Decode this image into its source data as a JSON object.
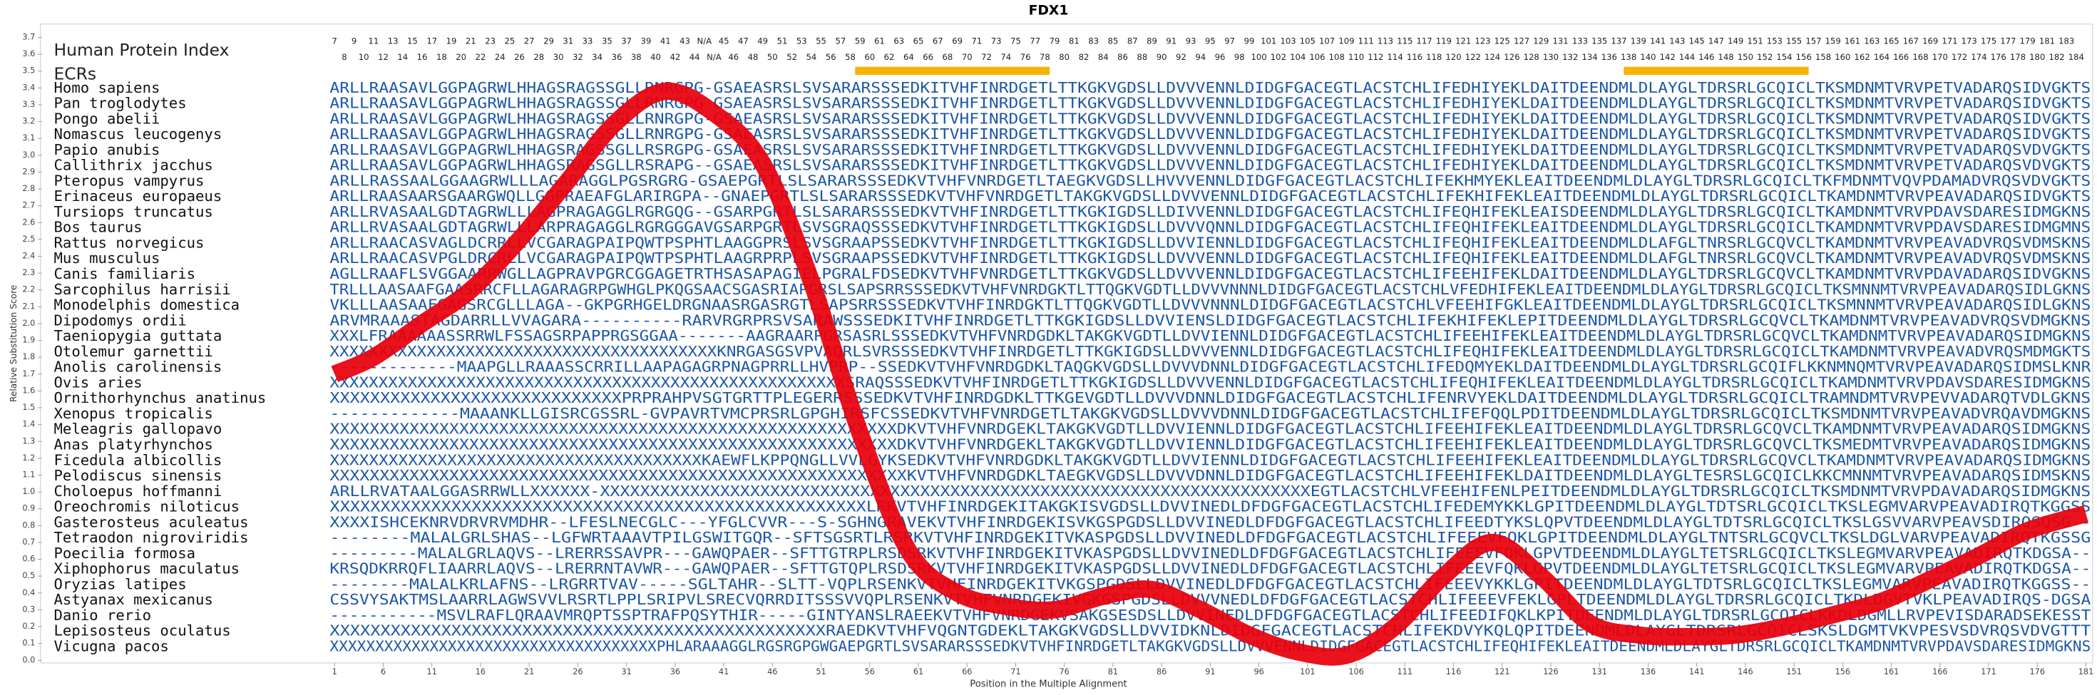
{
  "chart_data": {
    "type": "line",
    "title": "FDX1",
    "xlabel": "Position in the Multiple Alignment",
    "ylabel": "Relative Substitution Score",
    "x": [
      1,
      5,
      10,
      15,
      20,
      25,
      30,
      35,
      40,
      45,
      50,
      55,
      60,
      65,
      70,
      75,
      80,
      85,
      90,
      95,
      100,
      105,
      110,
      115,
      120,
      125,
      130,
      135,
      140,
      145,
      150,
      155,
      160,
      165,
      170,
      175,
      181
    ],
    "series": [
      {
        "color": "#e8000b",
        "values": [
          1.7,
          1.8,
          2.0,
          2.2,
          2.5,
          2.85,
          3.2,
          3.38,
          3.25,
          2.95,
          2.25,
          1.35,
          0.65,
          0.4,
          0.32,
          0.3,
          0.38,
          0.42,
          0.3,
          0.15,
          0.05,
          0.03,
          0.2,
          0.5,
          0.7,
          0.5,
          0.22,
          0.15,
          0.14,
          0.15,
          0.2,
          0.27,
          0.35,
          0.48,
          0.62,
          0.77,
          0.87
        ]
      }
    ],
    "xlim": [
      1,
      181
    ],
    "ylim": [
      0,
      3.7
    ],
    "xticks": [
      1,
      6,
      11,
      16,
      21,
      26,
      31,
      36,
      41,
      46,
      51,
      56,
      61,
      66,
      71,
      76,
      81,
      86,
      91,
      96,
      101,
      106,
      111,
      116,
      121,
      126,
      131,
      136,
      141,
      146,
      151,
      156,
      161,
      166,
      171,
      176,
      181
    ],
    "yticks": [
      {
        "value": 0,
        "label": "0.0"
      },
      0.1,
      0.2,
      0.3,
      0.4,
      0.5,
      0.6,
      0.7,
      0.8,
      0.9,
      {
        "value": 1,
        "label": "1.0"
      },
      1.1,
      1.2,
      1.3,
      1.4,
      1.5,
      1.6,
      1.7,
      1.8,
      1.9,
      {
        "value": 2,
        "label": "2.0"
      },
      2.1,
      2.2,
      2.3,
      2.4,
      2.5,
      2.6,
      2.7,
      2.8,
      2.9,
      {
        "value": 3,
        "label": "3.0"
      },
      3.1,
      3.2,
      3.3,
      3.4,
      3.5,
      3.6,
      3.7
    ]
  },
  "alignment": {
    "index_label": "Human Protein Index",
    "ecr_label": "ECRs",
    "human_index_odd": [
      7,
      9,
      11,
      13,
      15,
      17,
      19,
      21,
      23,
      25,
      27,
      29,
      31,
      33,
      35,
      37,
      39,
      41,
      43,
      "N/A",
      45,
      47,
      49,
      51,
      53,
      55,
      57,
      59,
      61,
      63,
      65,
      67,
      69,
      71,
      73,
      75,
      77,
      79,
      81,
      83,
      85,
      87,
      89,
      91,
      93,
      95,
      97,
      99,
      101,
      103,
      105,
      107,
      109,
      111,
      113,
      115,
      117,
      119,
      121,
      123,
      125,
      127,
      129,
      131,
      133,
      135,
      137,
      139,
      141,
      143,
      145,
      147,
      149,
      151,
      153,
      155,
      157,
      159,
      161,
      163,
      165,
      167,
      169,
      171,
      173,
      175,
      177,
      179,
      181,
      183
    ],
    "human_index_even": [
      8,
      10,
      12,
      14,
      16,
      18,
      20,
      22,
      24,
      26,
      28,
      30,
      32,
      34,
      36,
      38,
      40,
      42,
      44,
      "N/A",
      46,
      48,
      50,
      52,
      54,
      56,
      58,
      60,
      62,
      64,
      66,
      68,
      70,
      72,
      74,
      76,
      78,
      80,
      82,
      84,
      86,
      88,
      90,
      92,
      94,
      96,
      98,
      100,
      102,
      104,
      106,
      108,
      110,
      112,
      114,
      116,
      118,
      120,
      122,
      124,
      126,
      128,
      130,
      132,
      134,
      136,
      138,
      140,
      142,
      144,
      146,
      148,
      150,
      152,
      154,
      156,
      158,
      160,
      162,
      164,
      166,
      168,
      170,
      172,
      174,
      176,
      178,
      180,
      182,
      184
    ],
    "ecrs": {
      "color": "#f5b400",
      "ranges": [
        [
          55,
          74
        ],
        [
          134,
          152
        ]
      ]
    },
    "species": [
      {
        "name": "Homo sapiens",
        "sequence": "ARLLRAASAVLGGPAGRWLHHAGSRAGSSGLLRNRGPG-GSAEASRSLSVSARARSSSEDKITVHFINRDGETLTTKGKVGDSLLDVVVENNLDIDGFGACEGTLACSTCHLIFEDHIYEKLDAITDEENDMLDLAYGLTDRSRLGCQICLTKSMDNMTVRVPETVADARQSIDVGKTS"
      },
      {
        "name": "Pan troglodytes",
        "sequence": "ARLLRAASAVLGGPAGRWLHHAGSRAGSSGLLRNRGPG-GSAEASRSLSVSARARSSSEDKITVHFINRDGETLTTKGKVGDSLLDVVVENNLDIDGFGACEGTLACSTCHLIFEDHIYEKLDAITDEENDMLDLAYGLTDRSRLGCQICLTKSMDNMTVRVPETVADARQSIDVGKTS"
      },
      {
        "name": "Pongo abelii",
        "sequence": "ARLLRAASAVLGGPAGRWLHHAGSRAGSSGLLRNRGPG-GSAEASRSLSVSARARSSSEDKITVHFINRDGETLTTKGKVGDSLLDVVVENNLDIDGFGACEGTLACSTCHLIFEDHIYEKLDAITDEENDMLDLAYGLTDRSRLGCQICLTKSMDNMTVRVPETVADARQSIDVGKTS"
      },
      {
        "name": "Nomascus leucogenys",
        "sequence": "ARLLRAASAVLGGPAGRWLHHAGSRAGSSGLLRNRGPG-GSAEASRSLSVSARARSSSEDKITVHFINRDGETLTTKGKVGDSLLDVVVENNLDIDGFGACEGTLACSTCHLIFEDHIYEKLDAITDEENDMLDLAYGLTDRSRLGCQICLTKSMDNMTVRVPETVADARQSIDVGKTS"
      },
      {
        "name": "Papio anubis",
        "sequence": "ARLLRAASAVLGGPAGRWLHHAGSRAGSSGLLRSRGPG-GSAEASRSLSVSARARSSSEDKITVHFINRDGETLTTKGKVGDSLLDVVVENNLDIDGFGACEGTLACSTCHLIFEDHIYEKLDAITDEENDMLDLAYGLTDRSRLGCQICLTKSMDNMTVRVPETVADARQSVDVGKTS"
      },
      {
        "name": "Callithrix jacchus",
        "sequence": "ARLLRAASAVLGGPAGRWLHHAGSRAGSGLLRSRAPG--GSAEASRSLSVSARARSSSEDKITVHFINRDGETLTTKGKVGDSLLDVVVENNLDIDGFGACEGTLACSTCHLIFEDHIYEKLDAITDEENDMLDLAYGLTDRSRLGCQICLTKSMDNMTVRVPETVADARQSVDVGKTS"
      },
      {
        "name": "Pteropus vampyrus",
        "sequence": "ARLLRASSAALGGAAGRWLLLAGARAGGLPGSRGRG-GSAEPGRTLSLSARARSSSEDKVTVHFVNRDGETLTAEGKVGDSLLHVVVENNLDIDGFGACEGTLACSTCHLIFEKHMYEKLEAITDEENDMLDLAYGLTDRSRLGCQICLTKFMDNMTVQVPDAMADVRQSVDVGKTS"
      },
      {
        "name": "Erinaceus europaeus",
        "sequence": "ARLLRAASAARSGAARGWQLLGGPRAEAFGLARIRGPA--GNAEPGRTLSLSARARSSSEDKVTVHFVNRDGETLTAKGKVGDSLLDVVVENNLDIDGFGACEGTLACSTCHLIFEKHIFEKLEAITDEENDMLDLAYGLTDRSRLGCQICLTKAMDNMTVRVPEAVADARQSIDVGKTS"
      },
      {
        "name": "Tursiops truncatus",
        "sequence": "ARLLRVASAALGDTAGRWLLLAGPRAGAGGLRGRGQG--GSARPGRTLSLSARARSSSEDKVTVHFINRDGETLTTKGKIGDSLLDIVVENNLDIDGFGACEGTLACSTCHLIFEQHIFEKLEAISDEENDMLDLAYGLTDRSRLGCQICLTKAMDNMTVRVPDAVSDARESIDMGKNS"
      },
      {
        "name": "Bos taurus",
        "sequence": "ARLLRVASAALGDTAGRWLLLARPRAGAGGLRGRGGGAVGSARPGRTLSVSGRAQSSSEDKVTVHFINRDGETLTTKGKIGDSLLDVVVQNNLDIDGFGACEGTLACSTCHLIFEQHIFEKLEAITDEENDMLDLAYGLTDRSRLGCQICLTKAMDNMTVRVPDAVSDARESIDMGMNS"
      },
      {
        "name": "Rattus norvegicus",
        "sequence": "ARLLRAACASVAGLDCRRLLVCGARAGPAIPQWTPSPHTLAAGGPRSLSVSGRAAPSSEDKVTVHFINRDGETLTTKGKIGDSLLDVVIENNLDIDGFGACEGTLACSTCHLIFEQHIFEKLEAITDEENDMLDLAFGLTNRSRLGCQVCLTKAMDNMTVRVPEAVADVRQSVDMSKNS"
      },
      {
        "name": "Mus musculus",
        "sequence": "ARLLRAACASVPGLDRCRLLVCGARAGPAIPQWTPSPHTLAAGRPRPLSVSGRAAPSSEDKVTVHFINRDGETLTTKGKIGDSLLDVVVENNLDIDGFGACEGTLACSTCHLIFEQHIFEKLEAITDEENDMLDLAFGLTNRSRLGCQVCLTKAMDNMTVRVPEAVADVRQSVDMSKNS"
      },
      {
        "name": "Canis familiaris",
        "sequence": "AGLLRAAFLSVGGAARRWGLLAGPRAVPGRCGGAGETRTHSASAPAGIELPGRALFDSEDKVTVHFVNRDGETLTTKGKVGDSLLDVVVENNLDIDGFGACEGTLACSTCHLIFEEHIFEKLDAITDEENDMLDLAYGLTDRSRLGCQVCLTKAMDNMTVRVPDAVADARQSIDVGKNS"
      },
      {
        "name": "Sarcophilus harrisii",
        "sequence": "TRLLLAASAAFGAASRRCFLLAGARAGRPGWHGLPKQGSAACSGASRIAPGRSLSAPSRRSSSEDKVTVHFVNRDGKTLTTQGKVGDTLLDVVVNNNLDIDGFGACEGTLACSTCHLVFEDHIFEKLEAITDEENDMLDLAYGLTDRSRLGCQICLTKSMNNMTVRVPEAVADARQSIDLGKNS"
      },
      {
        "name": "Monodelphis domestica",
        "sequence": "VKLLLAASAAFGAGSRCGLLLAGA--GKPGRHGELDRGNAASRGASRGTLSAPSRRSSSEDKVTVHFINRDGKTLTTQGKVGDTLLDVVVNNNLDIDGFGACEGTLACSTCHLVFEEHIFGKLEAITDEENDMLDLAYGLTDRSRLGCQICLTKSMNNMTVRVPEAVADARQSIDLGKNS"
      },
      {
        "name": "Dipodomys ordii",
        "sequence": "ARVMRAAASTAGDARRLLVVAGARA----------RARVRGRPRSVSARAWSSSEDKITVHFINRDGETLTTKGKIGDSLLDVVIENSLDIDGFGACEGTLACSTCHLIFEKHIFEKLEPITDEENDMLDLAYGLTDRSRLGCQVCLTKAMDNMTVRVPEAVADVRQSVDMGKNS"
      },
      {
        "name": "Taeniopygia guttata",
        "sequence": "XXXLFRAAAAAASSRRWLFSSAGSRPAPPRGSGGAA-------AAGRAARPGRSASRLSSSEDKVTVHFVNRDGDKLTAKGKVGDTLLDVVIENNLDIDGFGACEGTLACSTCHLIFEEHIFEKLEAITDEENDMLDLAYGLTDRSRLGCQVCLTKAMDNMTVRVPEAVADARQSIDMGKNS"
      },
      {
        "name": "Otolemur garnettii",
        "sequence": "XXXXXXXXXXXXXXXXXXXXXXXXXXXXXXXXXXXXXXXXKNRGASGSVPVAQRLSVRSSSEDKVTVHFINRDGETLTTKGKIGDSLLDVVVENNLDIDGFGACEGTLACSTCHLIFEQHIFEKLEAITDEENDMLDLAYGLTDRSRLGCQICLTKAMDNMTVRVPEAVADVRQSMDMGKTS"
      },
      {
        "name": "Anolis carolinensis",
        "sequence": "-------------MAAPGLLRAAASSCRRILLAAPAGAGRPNAGPRRLLHVPRP--SSEDKVTVHFVNRDGDKLTAQGKVGDSLLDVVVDNNLDIDGFGACEGTLACSTCHLIFEDQMYEKLDAITDEENDMLDLAYGLTDRSRLGCQIFLKKNMNQMTVRVPEAVADARQSIDMSLKNR"
      },
      {
        "name": "Ovis aries",
        "sequence": "XXXXXXXXXXXXXXXXXXXXXXXXXXXXXXXXXXXXXXXXXXXXXXXXXXXXXSRAQSSSEDKVTVHFINRDGETLTTKGKIGDSLLDVVVENNLDIDGFGACEGTLACSTCHLIFEQHIFEKLEAITDEENDMLDLAYGLTDRSRLGCQICLTKAMDNMTVRVPDAVSDARESIDMGKNS"
      },
      {
        "name": "Ornithorhynchus anatinus",
        "sequence": "XXXXXXXXXXXXXXXXXXXXXXXXXXXXXPRPRAHPVSGTGRTTPLEGERRSSSEDKVTVHFINRDGDKLTTKGEVGDTLLDVVVDNNLDIDGFGACEGTLACSTCHLIFENRVYEKLDAITDEENDMLDLAYGLTDRSRLGCQICLTRAMNDMTVRVPEVVADARQTVDLGKNS"
      },
      {
        "name": "Xenopus tropicalis",
        "sequence": "-------------MAAANKLLGISRCGSSRL-GVPAVRTVMCPRSRLGPGHIRSFCSSEDKVTVHFVNRDGETLTAKGKVGDSLLDVVVDNNLDIDGFGACEGTLACSTCHLIFEFQQLPDITDEENDMLDLAYGLTDRSRLGCQICLTKSMDNMTVRVPEAVADVRQAVDMGKNS"
      },
      {
        "name": "Meleagris gallopavo",
        "sequence": "XXXXXXXXXXXXXXXXXXXXXXXXXXXXXXXXXXXXXXXXXXXXXXXXXXXXXXXXXDKVTVHFVNRDGEKLTAKGKVGDTLLDVVIENNLDIDGFGACEGTLACSTCHLIFEEHIFEKLEAITDEENDMLDLAYGLTDRSRLGCQVCLTKAMDNMTVRVPEAVADARQSIDMGKNS"
      },
      {
        "name": "Anas platyrhynchos",
        "sequence": "XXXXXXXXXXXXXXXXXXXXXXXXXXXXXXXXXXXXXXXXXXXXXXXXXXXXXXXXXDKVTVHFVNRDGEKLTAKGKVGDTLLDVVIENNLDIDGFGACEGTLACSTCHLIFEEHIFEKLEAITDEENDMLDLAYGLTDRSRLGCQVCLTKSMEDMTVRVPEAVADARQSIDMGKNS"
      },
      {
        "name": "Ficedula albicollis",
        "sequence": "XXXXXXXXXXXXXXXXXXXXXXXXXXXXXXXXXXXXXXKAEWFLKPPQNGLLVVLGYKSEDKVTVHFVNRDGDKLTAKGKVGDTLLDVVIENNLDIDGFGACEGTLACSTCHLIFEEHIFEKLEAITDEENDMLDLAYGLTDRSRLGCQVCLTKAMDNMTVRVPEAVADARQSIDMGKNS"
      },
      {
        "name": "Pelodiscus sinensis",
        "sequence": "XXXXXXXXXXXXXXXXXXXXXXXXXXXXXXXXXXXXXXXXXXXXXXXXXXXXXXXXXXKVTVHFVNRDGDKLTAEGKVGDSLLDVVVDNNLDIDGFGACEGTLACSTCHLIFEEHIFEKLDAITDEENDMLDLAYGLTESRSLGCQICLKKCMNNMTVRVPEAVADARQSIDMSKNS"
      },
      {
        "name": "Choloepus hoffmanni",
        "sequence": "ARLLRVATAALGGASRRWLLXXXXXX-XXXXXXXXXXXXXXXXXXXXXXXXXXXXXXXXXXXXXXXXXXXXXXXXXXXXXXXXXXXXXXXXXXXXXXXEGTLACSTCHLVFEEHIFENLPEITDEENDMLDLAYGLTDRSRLGCQICLTKSMDNMTVRVPDAVADARQSIDMGKNS"
      },
      {
        "name": "Oreochromis niloticus",
        "sequence": "XXXXXXXXXXXXXXXXXXXXXXXXXXXXXXXXXXXXXXXXXXXXXXXXXXXXXLRKVTVHFINRDGEKITAKGKISVGDSLLDVVINEDLDFDGFGACEGTLACSTCHLIFEDEMYKKLGPITDEENDMLDLAYGLTDTSRLGCQICLTKSLEGMVARVPEAVADIRQTKGGSS"
      },
      {
        "name": "Gasterosteus aculeatus",
        "sequence": "XXXXISHCEKNRVDRVRVMDHR--LFESLNECGLC---YFGLCVVR---S-SGHNGRAVEKVTVHFINRDGEKISVKGSPGDSLLDVVINEDLDFDGFGACEGTLACSTCHLIFEEDTYKSLQPVTDEENDMLDLAYGLTDTSRLGCQICLTKSLGSVVARVPEAVSDIRQSQSG--"
      },
      {
        "name": "Tetraodon nigroviridis",
        "sequence": "--------MALALGRLSHAS--LGFWRTAAAVTPILGSWITGQR--SFTSGSRTLRSRKVTVHFINRDGEKITVKASPGDSLLDVVINEDLDFDGFGACEGTLACSTCHLIFEEEVFQKLGPITDEENDMLDLAYGLTNTSRLGCQVCLTKSLDGLVARVPEAVADIRQTKGSSG"
      },
      {
        "name": "Poecilia formosa",
        "sequence": "---------MALALGRLAQVS--LRERRSSAVPR---GAWQPAER--SFTTGTRPLRSDSRKVTVHFINRDGEKITVKASPGDSLLDVVINEDLDFDGFGACEGTLACSTCHLIFEEEVFQKLGPVTDEENDMLDLAYGLTETSRLGCQICLTKSLEGMVARVPEAVADIRQTKDGSA--"
      },
      {
        "name": "Xiphophorus maculatus",
        "sequence": "KRSQDKRRQFLIAARRLAQVS--LRERRNTAVWR---GAWQPAER--SFTTGTQPLRSDSRKVTVHFINRDGEKITVKASPGDSLLDVVINEDLDFDGFGACEGTLACSTCHLIFEEEVFQKLGPVTDEENDMLDLAYGLTETSRLGCQICLTKSLEGMVARVPEAVADIRQTKDGSA--"
      },
      {
        "name": "Oryzias latipes",
        "sequence": "--------MALALKRLAFNS--LRGRRTVAV-----SGLTAHR--SLTT-VQPLRSENKVTVHFINRDGEKITVKGSPGDSLLDVVINEDLDFDGFGACEGTLACSTCHLIFEEEVYKKLGPITDEENDMLDLAYGLTDTSRLGCQICLTKSLEGMVARVPEAVADIRQTKGGSS--"
      },
      {
        "name": "Astyanax mexicanus",
        "sequence": "CSSVYSAKTMSLAARRLAGWSVVLRSRTLPPLSRIPVLSRECVQRRDITSSSVVQPLRSENKVTVHFVNRDGEKIVGKGSPGDSLLDVVVNEDLDFDGFGACEGTLACSTCHLIFEEEVFEKLGPLTDEENDMLDLAYGLTDRSRLGCQICLTKDLDGVTVKLPEAVADIRQS-DGSA"
      },
      {
        "name": "Danio rerio",
        "sequence": "-----------MSVLRAFLQRAAVMRQPTSSPTRAFPQSYTHIR-----GINTYANSLRAEEKVTVHFVNRDGEKVSAKGSESDSLLDVVINEDLDFDGFGACEGTLACSTCHLIFEEDIFQKLKPITDEENDMLDLAYGLTDRSRLGCQICLKKDLDGMLLRVPEVISDARADSEKESST"
      },
      {
        "name": "Lepisosteus oculatus",
        "sequence": "XXXXXXXXXXXXXXXXXXXXXXXXXXXXXXXXXXXXXXXXXXXXXXXXXRAEDKVTVHFVQGNTGDEKLTAKGKVGDSLLDVVIDKNLDIDGFGACEGTLACSTCHLIFEKDVYKQLQPITDEENDMLDLAYGLTDRSRLGCQICLSKSLDGMTVKVPESVSDVRQSVDVGTTT"
      },
      {
        "name": "Vicugna pacos",
        "sequence": "XXXXXXXXXXXXXXXXXXXXXXXXXXXXXXXXXXXXPHLARAAAGGLRGSRGPGWGAEPGRTLSVSARARSSSEDKVTVHFINRDGETLTAKGKVGDSLLDVVVENNLDIDGFGACEGTLACSTCHLIFEQHIFEKLEAITDEENDMLDLAYGLTDRSRLGCQICLTKAMDNMTVRVPDAVSDARESIDMGKNS"
      }
    ]
  }
}
